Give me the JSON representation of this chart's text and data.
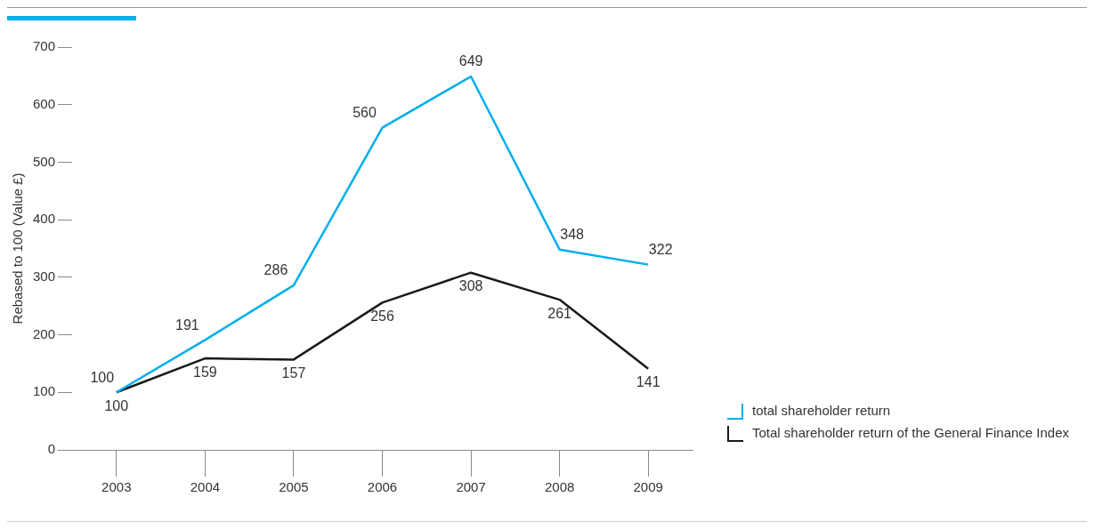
{
  "chart_data": {
    "type": "line",
    "ylabel": "Rebased to 100 (Value £)",
    "categories": [
      "2003",
      "2004",
      "2005",
      "2006",
      "2007",
      "2008",
      "2009"
    ],
    "series": [
      {
        "name": "total shareholder return",
        "color": "#00aeef",
        "values": [
          100,
          191,
          286,
          560,
          649,
          348,
          322
        ]
      },
      {
        "name": "Total shareholder return of the General Finance Index",
        "color": "#1a1a1a",
        "values": [
          100,
          159,
          157,
          256,
          308,
          261,
          141
        ]
      }
    ],
    "ylim": [
      0,
      700
    ],
    "yticks": [
      0,
      100,
      200,
      300,
      400,
      500,
      600,
      700
    ],
    "grid": false,
    "legend": "right",
    "marker": "none",
    "line_style": "solid",
    "data_labels": true
  }
}
